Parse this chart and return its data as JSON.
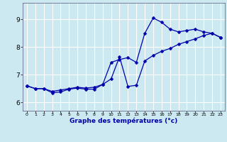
{
  "xlabel": "Graphe des températures (°c)",
  "bg_color": "#cce8f0",
  "grid_color": "#ffffff",
  "line_color": "#0000aa",
  "marker": "D",
  "markersize": 2.5,
  "linewidth": 0.9,
  "xlim": [
    -0.5,
    23.5
  ],
  "ylim": [
    5.7,
    9.6
  ],
  "xticks": [
    0,
    1,
    2,
    3,
    4,
    5,
    6,
    7,
    8,
    9,
    10,
    11,
    12,
    13,
    14,
    15,
    16,
    17,
    18,
    19,
    20,
    21,
    22,
    23
  ],
  "yticks": [
    6,
    7,
    8,
    9
  ],
  "curve1_x": [
    0,
    1,
    2,
    3,
    4,
    5,
    6,
    7,
    8,
    9,
    10,
    11,
    12,
    13,
    14,
    15,
    16,
    17,
    18,
    19,
    20,
    21,
    22,
    23
  ],
  "curve1_y": [
    6.6,
    6.5,
    6.5,
    6.35,
    6.38,
    6.48,
    6.52,
    6.48,
    6.48,
    6.65,
    7.45,
    7.55,
    7.62,
    7.45,
    8.5,
    9.05,
    8.9,
    8.65,
    8.55,
    8.6,
    8.65,
    8.55,
    8.5,
    8.35
  ],
  "curve2_x": [
    0,
    1,
    2,
    3,
    4,
    5,
    6,
    7,
    8,
    9,
    10,
    11,
    12,
    13,
    14,
    15,
    16,
    17,
    18,
    19,
    20,
    21,
    22,
    23
  ],
  "curve2_y": [
    6.6,
    6.5,
    6.5,
    6.4,
    6.45,
    6.5,
    6.55,
    6.52,
    6.55,
    6.65,
    6.85,
    7.65,
    6.58,
    6.62,
    7.5,
    7.7,
    7.85,
    7.95,
    8.1,
    8.2,
    8.3,
    8.42,
    8.5,
    8.35
  ]
}
